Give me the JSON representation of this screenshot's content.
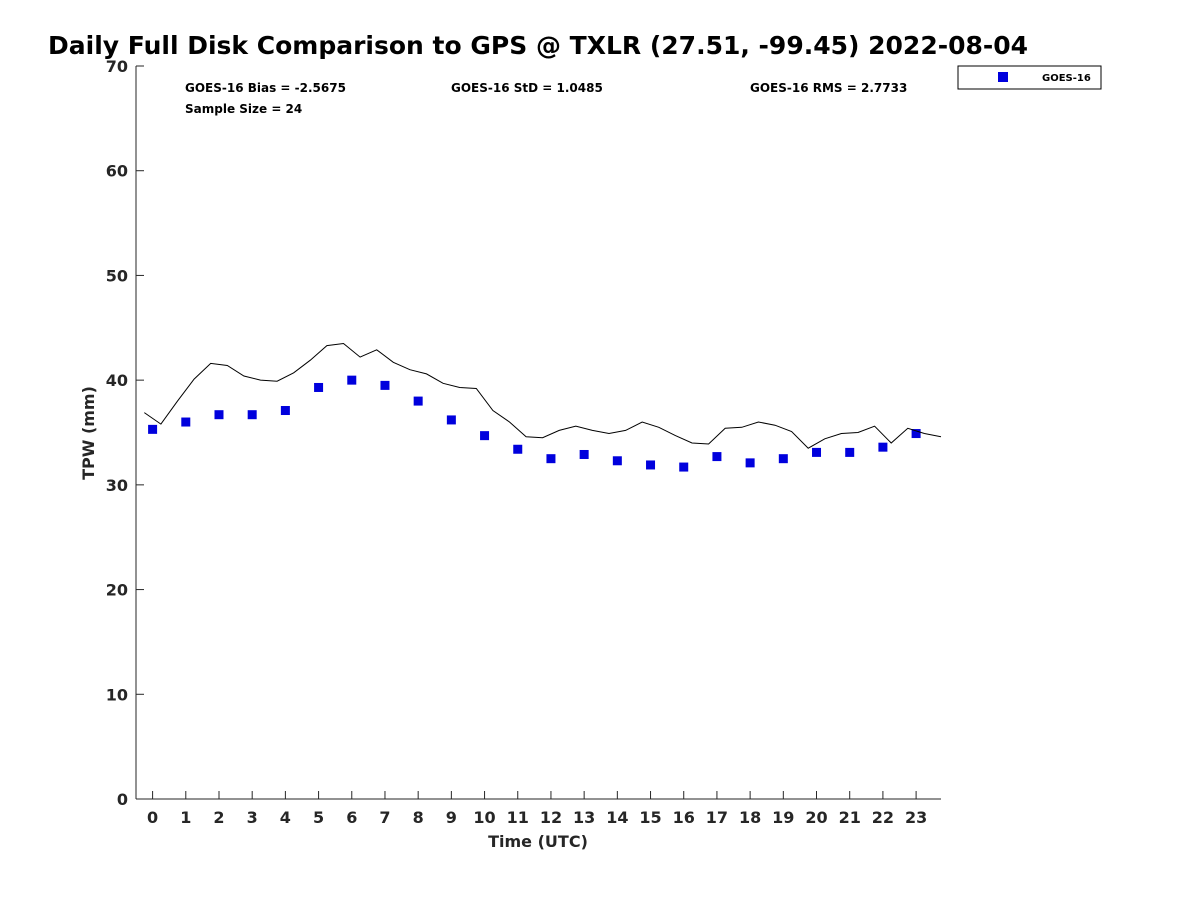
{
  "chart_data": {
    "type": "scatter",
    "title": "Daily Full Disk Comparison to GPS @ TXLR (27.51, -99.45) 2022-08-04",
    "xlabel": "Time (UTC)",
    "ylabel": "TPW (mm)",
    "xlim": [
      -0.5,
      23.75
    ],
    "ylim": [
      0,
      70
    ],
    "x_ticks": [
      0,
      1,
      2,
      3,
      4,
      5,
      6,
      7,
      8,
      9,
      10,
      11,
      12,
      13,
      14,
      15,
      16,
      17,
      18,
      19,
      20,
      21,
      22,
      23
    ],
    "y_ticks": [
      0,
      10,
      20,
      30,
      40,
      50,
      60,
      70
    ],
    "grid": false,
    "legend_position": "outside-top-right",
    "stats": {
      "bias": "GOES-16 Bias = -2.5675",
      "std": "GOES-16 StD = 1.0485",
      "rms": "GOES-16 RMS = 2.7733",
      "sample_size": "Sample Size = 24"
    },
    "series": [
      {
        "name": "GOES-16",
        "kind": "marker",
        "color": "#0000dd",
        "x": [
          0,
          1,
          2,
          3,
          4,
          5,
          6,
          7,
          8,
          9,
          10,
          11,
          12,
          13,
          14,
          15,
          16,
          17,
          18,
          19,
          20,
          21,
          22,
          23
        ],
        "values": [
          35.3,
          36.0,
          36.7,
          36.7,
          37.1,
          39.3,
          40.0,
          39.5,
          38.0,
          36.2,
          34.7,
          33.4,
          32.5,
          32.9,
          32.3,
          31.9,
          31.7,
          32.7,
          32.1,
          32.5,
          33.1,
          33.1,
          33.6,
          34.9
        ]
      },
      {
        "kind": "line",
        "color": "#000000",
        "x": [
          -0.25,
          0.25,
          0.75,
          1.25,
          1.75,
          2.25,
          2.75,
          3.25,
          3.75,
          4.25,
          4.75,
          5.25,
          5.75,
          6.25,
          6.75,
          7.25,
          7.75,
          8.25,
          8.75,
          9.25,
          9.75,
          10.25,
          10.75,
          11.25,
          11.75,
          12.25,
          12.75,
          13.25,
          13.75,
          14.25,
          14.75,
          15.25,
          15.75,
          16.25,
          16.75,
          17.25,
          17.75,
          18.25,
          18.75,
          19.25,
          19.75,
          20.25,
          20.75,
          21.25,
          21.75,
          22.25,
          22.75,
          23.25,
          23.75
        ],
        "values": [
          36.9,
          35.8,
          38.0,
          40.1,
          41.6,
          41.4,
          40.4,
          40.0,
          39.9,
          40.7,
          41.9,
          43.3,
          43.5,
          42.2,
          42.9,
          41.7,
          41.0,
          40.6,
          39.7,
          39.3,
          39.2,
          37.1,
          36.0,
          34.6,
          34.5,
          35.2,
          35.6,
          35.2,
          34.9,
          35.2,
          36.0,
          35.5,
          34.7,
          34.0,
          33.9,
          35.4,
          35.5,
          36.0,
          35.7,
          35.1,
          33.5,
          34.4,
          34.9,
          35.0,
          35.6,
          34.0,
          35.4,
          34.9,
          34.6
        ]
      }
    ]
  }
}
